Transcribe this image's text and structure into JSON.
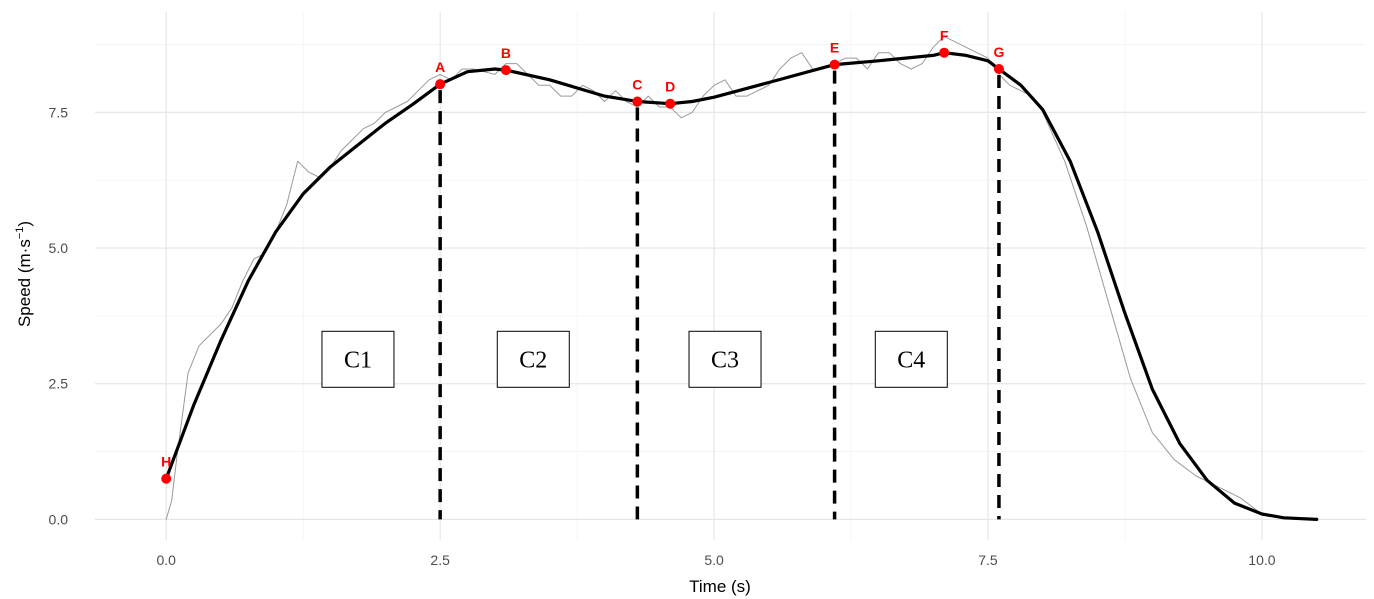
{
  "chart_data": {
    "type": "line",
    "xlabel": "Time (s)",
    "ylabel": "Speed (m·s",
    "ylabel_superscript": "−1",
    "ylabel_suffix": ")",
    "xlim": [
      -0.65,
      10.95
    ],
    "ylim": [
      -0.38,
      9.35
    ],
    "grid": true,
    "x_ticks": [
      0.0,
      2.5,
      5.0,
      7.5,
      10.0
    ],
    "x_tick_labels": [
      "0.0",
      "2.5",
      "5.0",
      "7.5",
      "10.0"
    ],
    "y_ticks": [
      0.0,
      2.5,
      5.0,
      7.5
    ],
    "y_tick_labels": [
      "0.0",
      "2.5",
      "5.0",
      "7.5"
    ],
    "series": [
      {
        "style": "raw",
        "color": "#9a9a9a",
        "x": [
          0.0,
          0.05,
          0.1,
          0.2,
          0.3,
          0.4,
          0.5,
          0.6,
          0.7,
          0.8,
          0.9,
          1.0,
          1.1,
          1.2,
          1.3,
          1.4,
          1.5,
          1.6,
          1.7,
          1.8,
          1.9,
          2.0,
          2.1,
          2.2,
          2.3,
          2.4,
          2.5,
          2.6,
          2.7,
          2.8,
          2.9,
          3.0,
          3.1,
          3.2,
          3.3,
          3.4,
          3.5,
          3.6,
          3.7,
          3.8,
          3.9,
          4.0,
          4.1,
          4.2,
          4.3,
          4.4,
          4.5,
          4.6,
          4.7,
          4.8,
          4.9,
          5.0,
          5.1,
          5.2,
          5.3,
          5.4,
          5.5,
          5.6,
          5.7,
          5.8,
          5.9,
          6.0,
          6.1,
          6.2,
          6.3,
          6.4,
          6.5,
          6.6,
          6.7,
          6.8,
          6.9,
          7.0,
          7.1,
          7.2,
          7.3,
          7.4,
          7.5,
          7.6,
          7.7,
          7.8,
          7.9,
          8.0,
          8.2,
          8.4,
          8.6,
          8.8,
          9.0,
          9.2,
          9.4,
          9.6,
          9.8,
          10.0,
          10.1,
          10.2,
          10.3,
          10.5
        ],
        "y": [
          0.0,
          0.35,
          1.2,
          2.7,
          3.2,
          3.4,
          3.6,
          3.9,
          4.4,
          4.8,
          4.9,
          5.3,
          5.8,
          6.6,
          6.4,
          6.3,
          6.5,
          6.8,
          7.0,
          7.2,
          7.3,
          7.5,
          7.6,
          7.7,
          7.9,
          8.1,
          8.2,
          8.1,
          8.3,
          8.3,
          8.25,
          8.2,
          8.4,
          8.4,
          8.2,
          8.0,
          8.0,
          7.8,
          7.8,
          8.0,
          7.9,
          7.7,
          7.9,
          7.7,
          7.6,
          7.8,
          7.6,
          7.6,
          7.4,
          7.5,
          7.8,
          8.0,
          8.1,
          7.8,
          7.8,
          7.9,
          8.0,
          8.3,
          8.5,
          8.6,
          8.3,
          8.3,
          8.4,
          8.5,
          8.5,
          8.3,
          8.6,
          8.6,
          8.4,
          8.3,
          8.4,
          8.7,
          8.9,
          8.8,
          8.7,
          8.6,
          8.5,
          8.2,
          8.0,
          7.9,
          7.8,
          7.5,
          6.6,
          5.4,
          4.0,
          2.6,
          1.6,
          1.1,
          0.8,
          0.6,
          0.4,
          0.1,
          0.05,
          0.02,
          0.01,
          0.0
        ]
      },
      {
        "style": "smoothed",
        "color": "#000000",
        "x": [
          0.0,
          0.25,
          0.5,
          0.75,
          1.0,
          1.25,
          1.5,
          1.75,
          2.0,
          2.25,
          2.5,
          2.75,
          3.0,
          3.1,
          3.5,
          4.0,
          4.3,
          4.6,
          4.8,
          5.0,
          5.5,
          6.1,
          6.5,
          7.0,
          7.1,
          7.3,
          7.5,
          7.6,
          7.8,
          8.0,
          8.25,
          8.5,
          8.75,
          9.0,
          9.25,
          9.5,
          9.75,
          10.0,
          10.2,
          10.5
        ],
        "y": [
          0.75,
          2.1,
          3.3,
          4.4,
          5.3,
          6.0,
          6.5,
          6.9,
          7.3,
          7.65,
          8.02,
          8.25,
          8.3,
          8.28,
          8.1,
          7.8,
          7.7,
          7.66,
          7.7,
          7.78,
          8.05,
          8.38,
          8.45,
          8.55,
          8.6,
          8.55,
          8.45,
          8.3,
          8.0,
          7.55,
          6.6,
          5.3,
          3.8,
          2.4,
          1.4,
          0.72,
          0.3,
          0.1,
          0.03,
          0.0
        ]
      }
    ],
    "key_points": [
      {
        "label": "H",
        "x": 0.0,
        "y": 0.75
      },
      {
        "label": "A",
        "x": 2.5,
        "y": 8.02
      },
      {
        "label": "B",
        "x": 3.1,
        "y": 8.28
      },
      {
        "label": "C",
        "x": 4.3,
        "y": 7.7
      },
      {
        "label": "D",
        "x": 4.6,
        "y": 7.66
      },
      {
        "label": "E",
        "x": 6.1,
        "y": 8.38
      },
      {
        "label": "F",
        "x": 7.1,
        "y": 8.6
      },
      {
        "label": "G",
        "x": 7.6,
        "y": 8.3
      }
    ],
    "key_point_color": "#ff0000",
    "phase_boundaries_x": [
      2.5,
      4.3,
      6.1,
      7.6
    ],
    "phase_labels": [
      {
        "label": "C1",
        "x": 1.75,
        "y": 2.95
      },
      {
        "label": "C2",
        "x": 3.35,
        "y": 2.95
      },
      {
        "label": "C3",
        "x": 5.1,
        "y": 2.95
      },
      {
        "label": "C4",
        "x": 6.8,
        "y": 2.95
      }
    ]
  }
}
